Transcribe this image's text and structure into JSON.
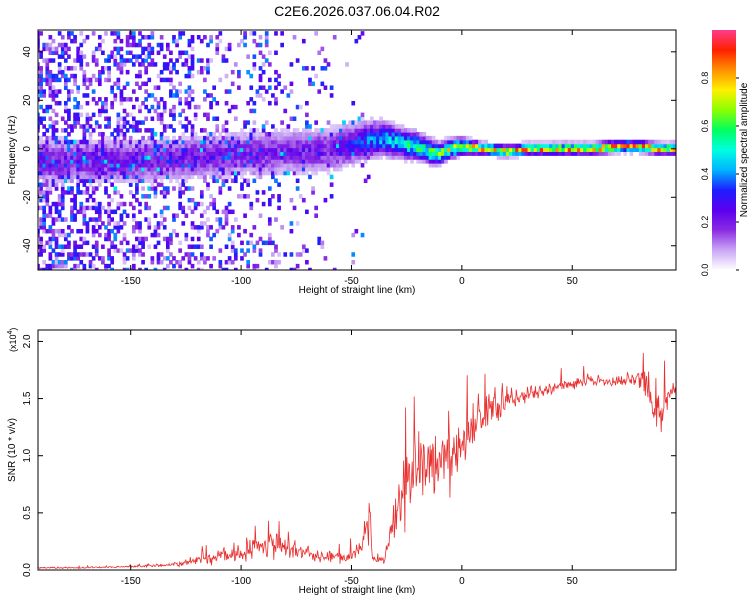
{
  "title": "C2E6.2026.037.06.04.R02",
  "chart_data": [
    {
      "type": "heatmap",
      "name": "spectrogram",
      "xlabel": "Height of straight line (km)",
      "ylabel": "Frequency (Hz)",
      "xlim": [
        -192,
        97
      ],
      "ylim": [
        -50,
        49
      ],
      "xticks": [
        -150,
        -100,
        -50,
        0,
        50
      ],
      "yticks": [
        -40,
        -20,
        0,
        20,
        40
      ],
      "ridge": {
        "x": [
          -150,
          -130,
          -110,
          -100,
          -90,
          -80,
          -70,
          -60,
          -50,
          -45,
          -40,
          -35,
          -30,
          -25,
          -20,
          -15,
          -10,
          -5,
          0,
          10,
          20,
          30,
          40,
          50,
          60,
          70,
          80,
          90,
          95
        ],
        "y": [
          -5,
          -4,
          -3,
          -2,
          -2,
          -1,
          -1,
          -0.5,
          2,
          3,
          4,
          4,
          3,
          2,
          1,
          -1,
          -2,
          0,
          1,
          0,
          -1,
          0,
          0,
          0,
          0,
          1,
          1,
          0,
          0
        ]
      },
      "colorbar": {
        "label": "Normalized spectral amplitude",
        "range": [
          0,
          1
        ],
        "ticks": [
          "0.0",
          "0.2",
          "0.4",
          "0.6",
          "0.8"
        ],
        "colors": [
          "#ffffff",
          "#c9a6f5",
          "#8a2be2",
          "#5b00f0",
          "#1e1eff",
          "#00b4ff",
          "#00ffe0",
          "#00ff60",
          "#8cff00",
          "#fff000",
          "#ff9000",
          "#ff2000",
          "#ff3c8c"
        ]
      }
    },
    {
      "type": "line",
      "name": "snr",
      "xlabel": "Height of straight line (km)",
      "ylabel": "SNR (10 * v/v)",
      "scale_label": "(x10",
      "scale_exp": "4",
      "scale_close": ")",
      "xlim": [
        -192,
        97
      ],
      "ylim": [
        0,
        2.1
      ],
      "xticks": [
        -150,
        -100,
        -50,
        0,
        50
      ],
      "yticks": [
        "0.0",
        "0.5",
        "1.0",
        "1.5",
        "2.0"
      ],
      "series": [
        {
          "name": "SNR",
          "color": "#e8302f",
          "x": [
            -192,
            -170,
            -150,
            -135,
            -125,
            -115,
            -105,
            -100,
            -95,
            -90,
            -85,
            -80,
            -75,
            -70,
            -65,
            -60,
            -55,
            -50,
            -45,
            -42,
            -40,
            -38,
            -35,
            -30,
            -25,
            -20,
            -15,
            -10,
            -5,
            0,
            5,
            10,
            20,
            25,
            30,
            40,
            50,
            60,
            70,
            80,
            85,
            90,
            97
          ],
          "y": [
            0.02,
            0.02,
            0.03,
            0.04,
            0.06,
            0.1,
            0.13,
            0.16,
            0.2,
            0.22,
            0.2,
            0.22,
            0.18,
            0.16,
            0.12,
            0.12,
            0.1,
            0.12,
            0.22,
            0.45,
            0.1,
            0.08,
            0.1,
            0.45,
            0.75,
            0.95,
            0.95,
            0.95,
            1.05,
            1.1,
            1.25,
            1.35,
            1.5,
            1.5,
            1.55,
            1.6,
            1.62,
            1.65,
            1.65,
            1.68,
            1.55,
            1.4,
            1.65
          ],
          "noise": [
            0.01,
            0.01,
            0.01,
            0.02,
            0.04,
            0.08,
            0.1,
            0.12,
            0.15,
            0.15,
            0.15,
            0.15,
            0.12,
            0.1,
            0.08,
            0.07,
            0.06,
            0.08,
            0.12,
            0.3,
            0.05,
            0.05,
            0.08,
            0.3,
            0.45,
            0.5,
            0.45,
            0.45,
            0.4,
            0.35,
            0.3,
            0.25,
            0.15,
            0.12,
            0.1,
            0.08,
            0.07,
            0.08,
            0.08,
            0.1,
            0.2,
            0.25,
            0.15
          ]
        }
      ]
    }
  ]
}
